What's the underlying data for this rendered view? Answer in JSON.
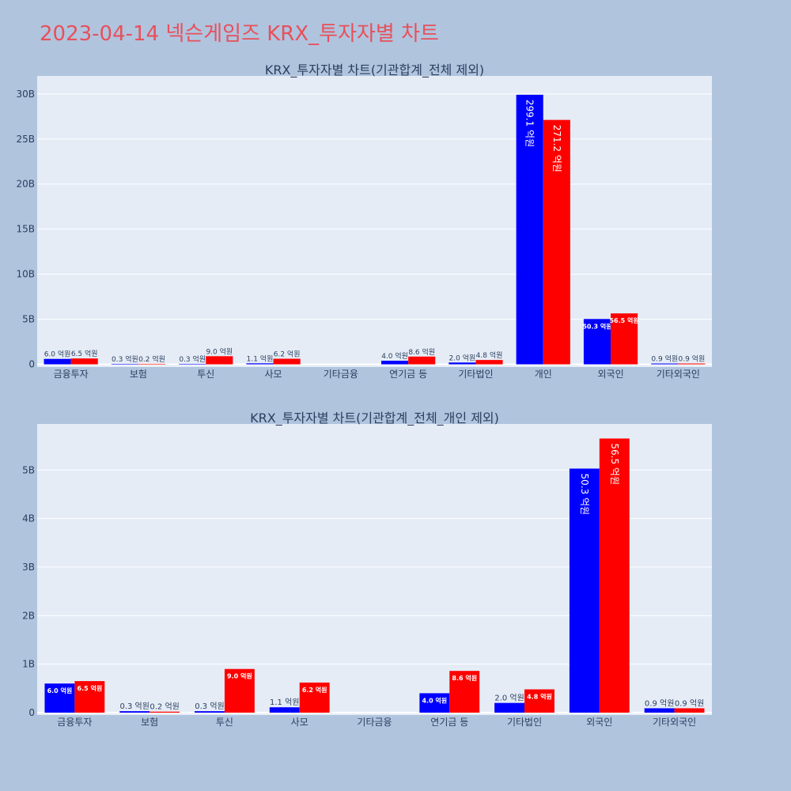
{
  "page_title": "2023-04-14 넥슨게임즈 KRX_투자자별 차트",
  "colors": {
    "buy": "#0000ff",
    "sell": "#ff0000",
    "plot_bg": "#e5ecf6",
    "page_bg": "#b0c4de",
    "title": "#e8505b"
  },
  "chart_data": [
    {
      "type": "bar",
      "title": "KRX_투자자별 차트(기관합계_전체 제외)",
      "categories": [
        "금융투자",
        "보험",
        "투신",
        "사모",
        "기타금융",
        "연기금 등",
        "기타법인",
        "개인",
        "외국인",
        "기타외국인"
      ],
      "series": [
        {
          "values": [
            0.6,
            0.03,
            0.03,
            0.11,
            null,
            0.4,
            0.2,
            29.91,
            5.03,
            0.09
          ],
          "labels": [
            "6.0 억원",
            "0.3 억원",
            "0.3 억원",
            "1.1 억원",
            "",
            "4.0 억원",
            "2.0 억원",
            "299.1 억원",
            "50.3 억원",
            "0.9 억원"
          ]
        },
        {
          "values": [
            0.65,
            0.02,
            0.9,
            0.62,
            null,
            0.86,
            0.48,
            27.12,
            5.65,
            0.09
          ],
          "labels": [
            "6.5 억원",
            "0.2 억원",
            "9.0 억원",
            "6.2 억원",
            "",
            "8.6 억원",
            "4.8 억원",
            "271.2 억원",
            "56.5 억원",
            "0.9 억원"
          ]
        }
      ],
      "ylim": [
        -0.3,
        32
      ],
      "yticks": [
        0,
        5,
        10,
        15,
        20,
        25,
        30
      ],
      "ytick_labels": [
        "0",
        "5B",
        "10B",
        "15B",
        "20B",
        "25B",
        "30B"
      ],
      "grid": true
    },
    {
      "type": "bar",
      "title": "KRX_투자자별 차트(기관합계_전체_개인 제외)",
      "categories": [
        "금융투자",
        "보험",
        "투신",
        "사모",
        "기타금융",
        "연기금 등",
        "기타법인",
        "외국인",
        "기타외국인"
      ],
      "series": [
        {
          "values": [
            0.6,
            0.03,
            0.03,
            0.11,
            null,
            0.4,
            0.2,
            5.03,
            0.09
          ],
          "labels": [
            "6.0 억원",
            "0.3 억원",
            "0.3 억원",
            "1.1 억원",
            "",
            "4.0 억원",
            "2.0 억원",
            "50.3 억원",
            "0.9 억원"
          ]
        },
        {
          "values": [
            0.65,
            0.02,
            0.9,
            0.62,
            null,
            0.86,
            0.48,
            5.65,
            0.09
          ],
          "labels": [
            "6.5 억원",
            "0.2 억원",
            "9.0 억원",
            "6.2 억원",
            "",
            "8.6 억원",
            "4.8 억원",
            "56.5 억원",
            "0.9 억원"
          ]
        }
      ],
      "ylim": [
        -0.05,
        5.95
      ],
      "yticks": [
        0,
        1,
        2,
        3,
        4,
        5
      ],
      "ytick_labels": [
        "0",
        "1B",
        "2B",
        "3B",
        "4B",
        "5B"
      ],
      "grid": true
    }
  ]
}
